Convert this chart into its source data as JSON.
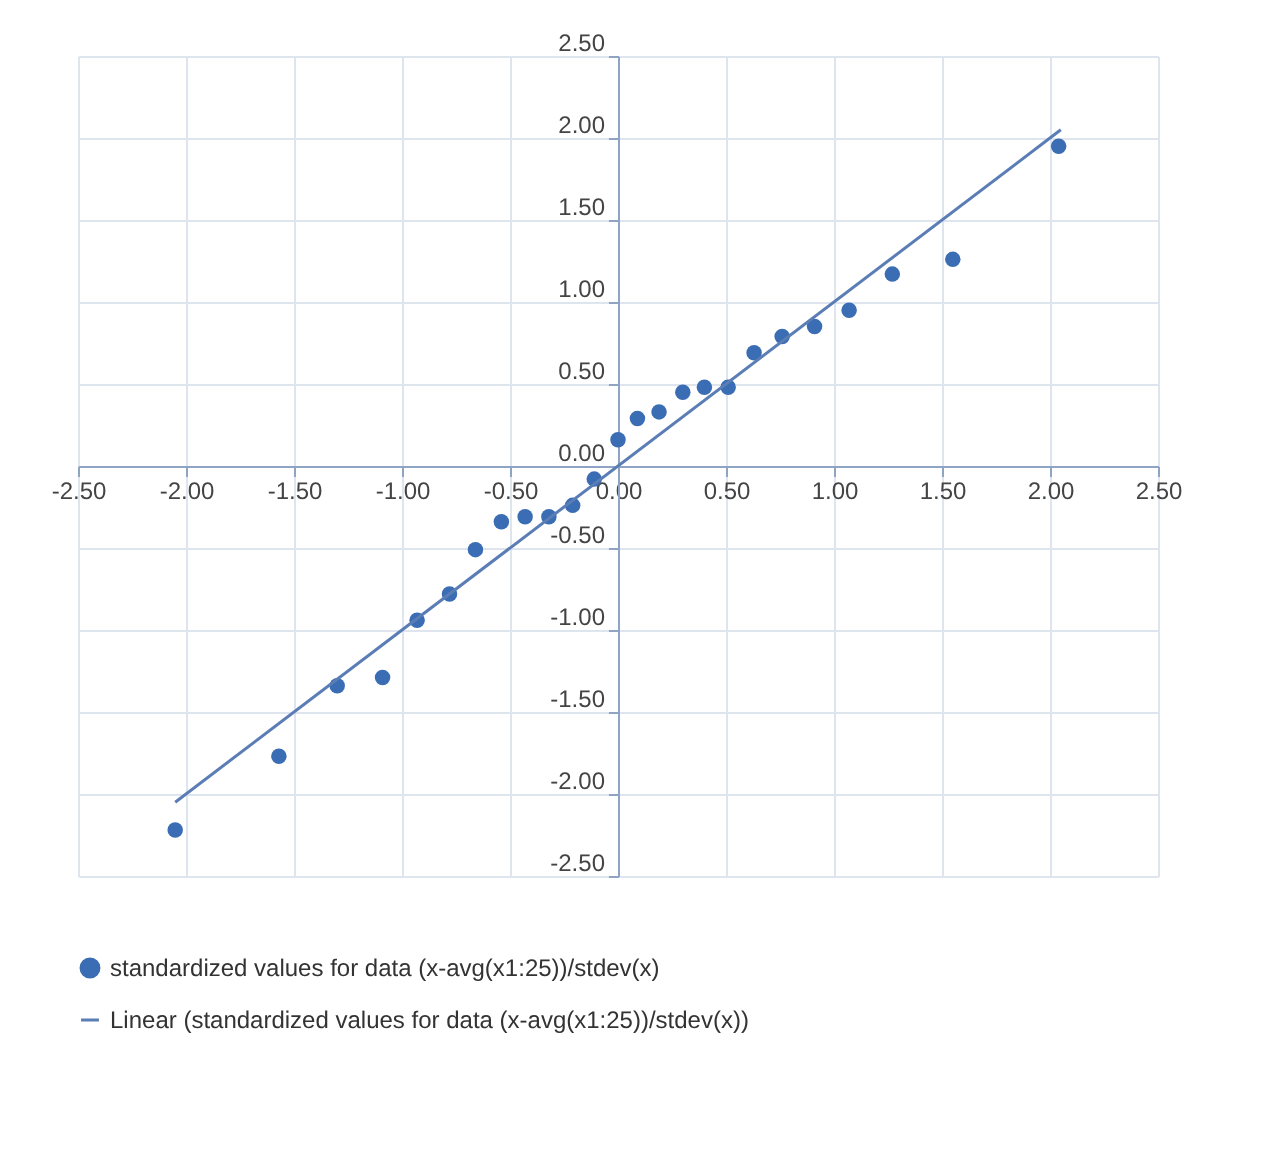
{
  "chart_data": {
    "type": "scatter",
    "xlim": [
      -2.5,
      2.5
    ],
    "ylim": [
      -2.5,
      2.5
    ],
    "xticks": [
      {
        "value": -2.5,
        "label": "-2.50"
      },
      {
        "value": -2,
        "label": "-2.00"
      },
      {
        "value": -1.5,
        "label": "-1.50"
      },
      {
        "value": -1,
        "label": "-1.00"
      },
      {
        "value": -0.5,
        "label": "-0.50"
      },
      {
        "value": 0,
        "label": "0.00"
      },
      {
        "value": 0.5,
        "label": "0.50"
      },
      {
        "value": 1,
        "label": "1.00"
      },
      {
        "value": 1.5,
        "label": "1.50"
      },
      {
        "value": 2,
        "label": "2.00"
      },
      {
        "value": 2.5,
        "label": "2.50"
      }
    ],
    "yticks": [
      {
        "value": -2.5,
        "label": "-2.50"
      },
      {
        "value": -2,
        "label": "-2.00"
      },
      {
        "value": -1.5,
        "label": "-1.50"
      },
      {
        "value": -1,
        "label": "-1.00"
      },
      {
        "value": -0.5,
        "label": "-0.50"
      },
      {
        "value": 0,
        "label": "0.00"
      },
      {
        "value": 0.5,
        "label": "0.50"
      },
      {
        "value": 1,
        "label": "1.00"
      },
      {
        "value": 1.5,
        "label": "1.50"
      },
      {
        "value": 2,
        "label": "2.00"
      },
      {
        "value": 2.5,
        "label": "2.50"
      }
    ],
    "grid": true,
    "legend": "bottom",
    "series": [
      {
        "name": "standardized values for data          (x-avg(x1:25))/stdev(x)",
        "marker": "circle",
        "color": "#3a6db3",
        "x": [
          -2.05,
          -1.57,
          -1.3,
          -1.09,
          -0.93,
          -0.78,
          -0.66,
          -0.54,
          -0.43,
          -0.32,
          -0.21,
          -0.11,
          0,
          0.09,
          0.19,
          0.3,
          0.4,
          0.51,
          0.63,
          0.76,
          0.91,
          1.07,
          1.27,
          1.55,
          2.04
        ],
        "values": [
          -2.22,
          -1.77,
          -1.34,
          -1.29,
          -0.94,
          -0.78,
          -0.51,
          -0.34,
          -0.31,
          -0.31,
          -0.24,
          -0.08,
          0.16,
          0.29,
          0.33,
          0.45,
          0.48,
          0.48,
          0.69,
          0.79,
          0.85,
          0.95,
          1.17,
          1.26,
          1.95
        ]
      },
      {
        "name": "Linear (standardized values for data          (x-avg(x1:25))/stdev(x))",
        "type": "line",
        "line_style": "solid",
        "color": "#5b7db5",
        "x": [
          -2.05,
          2.05
        ],
        "values": [
          -2.05,
          2.05
        ]
      }
    ]
  }
}
